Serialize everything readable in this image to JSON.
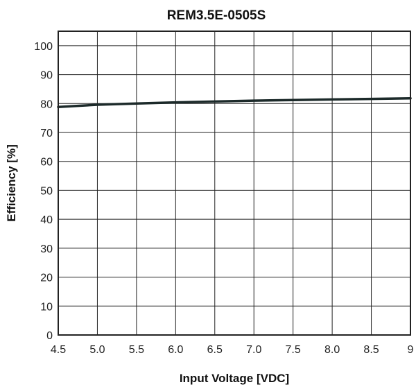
{
  "chart_data": {
    "type": "line",
    "title": "REM3.5E-0505S",
    "xlabel": "Input Voltage [VDC]",
    "ylabel": "Efficiency [%]",
    "xlim": [
      4.5,
      9
    ],
    "ylim": [
      0,
      105
    ],
    "x_ticks": [
      "4.5",
      "5.0",
      "5.5",
      "6.0",
      "6.5",
      "7.0",
      "7.5",
      "8.0",
      "8.5",
      "9"
    ],
    "x_tick_values": [
      4.5,
      5.0,
      5.5,
      6.0,
      6.5,
      7.0,
      7.5,
      8.0,
      8.5,
      9.0
    ],
    "y_ticks": [
      "0",
      "10",
      "20",
      "30",
      "40",
      "50",
      "60",
      "70",
      "80",
      "90",
      "100"
    ],
    "y_tick_values": [
      0,
      10,
      20,
      30,
      40,
      50,
      60,
      70,
      80,
      90,
      100
    ],
    "grid": true,
    "series": [
      {
        "color": "#1c2a2a",
        "x": [
          4.5,
          5.0,
          5.5,
          6.0,
          6.5,
          7.0,
          7.5,
          8.0,
          8.5,
          9.0
        ],
        "values": [
          78.8,
          79.6,
          80.0,
          80.4,
          80.7,
          81.0,
          81.2,
          81.4,
          81.6,
          81.8
        ]
      }
    ]
  }
}
